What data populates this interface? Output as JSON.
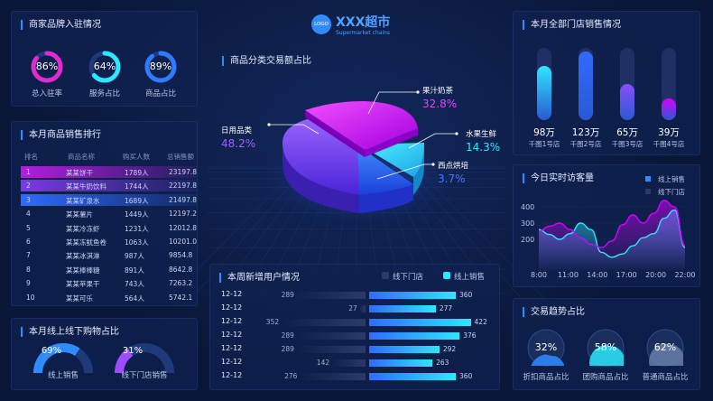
{
  "colors": {
    "accent": "#2f8cff",
    "magenta": "#d400ff",
    "cyan": "#2ee6ff",
    "panel": "#102250",
    "background": "#0a1738"
  },
  "logo": {
    "badge": "LOGO",
    "title": "XXX超市",
    "subtitle": "Supermarket chains"
  },
  "merchant": {
    "title": "商家品牌入驻情况",
    "rings": [
      {
        "value_text": "86%",
        "value": 86,
        "label": "总入驻率",
        "color": "#e02bd0"
      },
      {
        "value_text": "64%",
        "value": 64,
        "label": "服务占比",
        "color": "#2ee6ff"
      },
      {
        "value_text": "89%",
        "value": 89,
        "label": "商品占比",
        "color": "#2f7bff"
      }
    ]
  },
  "ranking": {
    "title": "本月商品销售排行",
    "headers": [
      "排名",
      "商品名称",
      "购买人数",
      "总销售额"
    ],
    "rows": [
      {
        "rank": "1",
        "name": "某某饼干",
        "buyers": "1789人",
        "amount": "23197.8"
      },
      {
        "rank": "2",
        "name": "某某牛奶饮料",
        "buyers": "1744人",
        "amount": "22197.8"
      },
      {
        "rank": "3",
        "name": "某某矿泉水",
        "buyers": "1689人",
        "amount": "21497.8"
      },
      {
        "rank": "4",
        "name": "某某薯片",
        "buyers": "1449人",
        "amount": "12197.2"
      },
      {
        "rank": "5",
        "name": "某某冷冻虾",
        "buyers": "1231人",
        "amount": "12012.8"
      },
      {
        "rank": "6",
        "name": "某某冻鱿鱼卷",
        "buyers": "1063人",
        "amount": "10201.0"
      },
      {
        "rank": "7",
        "name": "某某冰淇淋",
        "buyers": "987人",
        "amount": "9854.8"
      },
      {
        "rank": "8",
        "name": "某某棒棒糖",
        "buyers": "891人",
        "amount": "8642.8"
      },
      {
        "rank": "9",
        "name": "某某苹果干",
        "buyers": "743人",
        "amount": "7263.2"
      },
      {
        "rank": "10",
        "name": "某某可乐",
        "buyers": "564人",
        "amount": "5742.1"
      }
    ]
  },
  "online": {
    "title": "本月线上线下购物占比",
    "gauges": [
      {
        "value_text": "69%",
        "value": 69,
        "label": "线上销售",
        "color": "#2f8cff"
      },
      {
        "value_text": "31%",
        "value": 31,
        "label": "线下门店销售",
        "color": "#9d4dff"
      }
    ]
  },
  "category": {
    "title": "商品分类交易额占比",
    "items": [
      {
        "name": "果汁奶茶",
        "value_text": "32.8%",
        "value": 32.8,
        "color": "#d400ff"
      },
      {
        "name": "水果生鲜",
        "value_text": "14.3%",
        "value": 14.3,
        "color": "#2ee6ff"
      },
      {
        "name": "西点烘培",
        "value_text": "3.7%",
        "value": 3.7,
        "color": "#2f6bff"
      },
      {
        "name": "日用品类",
        "value_text": "48.2%",
        "value": 48.2,
        "color": "#8a4dff"
      }
    ]
  },
  "newusers": {
    "title": "本周新增用户情况",
    "legend": [
      "线下门店",
      "线上销售"
    ],
    "rows": [
      {
        "date": "12-12",
        "offline": 289,
        "online": 360
      },
      {
        "date": "12-12",
        "offline": 27,
        "online": 277
      },
      {
        "date": "12-12",
        "offline": 352,
        "online": 422
      },
      {
        "date": "12-12",
        "offline": 289,
        "online": 376
      },
      {
        "date": "12-12",
        "offline": 289,
        "online": 292
      },
      {
        "date": "12-12",
        "offline": 142,
        "online": 263
      },
      {
        "date": "12-12",
        "offline": 276,
        "online": 360
      }
    ]
  },
  "stores": {
    "title": "本月全部门店销售情况",
    "items": [
      {
        "value_text": "98万",
        "value": 98,
        "label": "千图1号店",
        "color": "#2ee6ff"
      },
      {
        "value_text": "123万",
        "value": 123,
        "label": "千图2号店",
        "color": "#2f6bff"
      },
      {
        "value_text": "65万",
        "value": 65,
        "label": "千图3号店",
        "color": "#8a4dff"
      },
      {
        "value_text": "39万",
        "value": 39,
        "label": "千图4号店",
        "color": "#d400ff"
      }
    ]
  },
  "visits": {
    "title": "今日实时访客量",
    "legend": [
      "线上销售",
      "线下门店"
    ],
    "chart_data": {
      "type": "area",
      "x": [
        "8:00",
        "11:00",
        "14:00",
        "17:00",
        "20:00",
        "22:00"
      ],
      "ylim": [
        0,
        500
      ],
      "yticks": [
        "400",
        "300",
        "200"
      ],
      "series": [
        {
          "name": "线上销售",
          "color": "#2ee6ff",
          "x": [
            8,
            9,
            10,
            11,
            12,
            13,
            14,
            15,
            16,
            17,
            18,
            19,
            20,
            21,
            22
          ],
          "values": [
            260,
            230,
            200,
            235,
            300,
            260,
            120,
            90,
            110,
            160,
            210,
            235,
            330,
            380,
            150
          ]
        },
        {
          "name": "线下门店",
          "color": "#d400ff",
          "x": [
            8,
            9,
            10,
            11,
            12,
            13,
            14,
            15,
            16,
            17,
            18,
            19,
            20,
            21,
            22
          ],
          "values": [
            250,
            280,
            300,
            260,
            210,
            170,
            150,
            190,
            290,
            350,
            300,
            360,
            440,
            400,
            160
          ]
        }
      ]
    }
  },
  "trend": {
    "title": "交易趋势占比",
    "items": [
      {
        "value_text": "32%",
        "value": 32,
        "label": "折扣商品占比",
        "color": "#2f8cff"
      },
      {
        "value_text": "58%",
        "value": 58,
        "label": "团购商品占比",
        "color": "#2ee6ff"
      },
      {
        "value_text": "62%",
        "value": 62,
        "label": "普通商品占比",
        "color": "#6a7ea8"
      }
    ]
  }
}
